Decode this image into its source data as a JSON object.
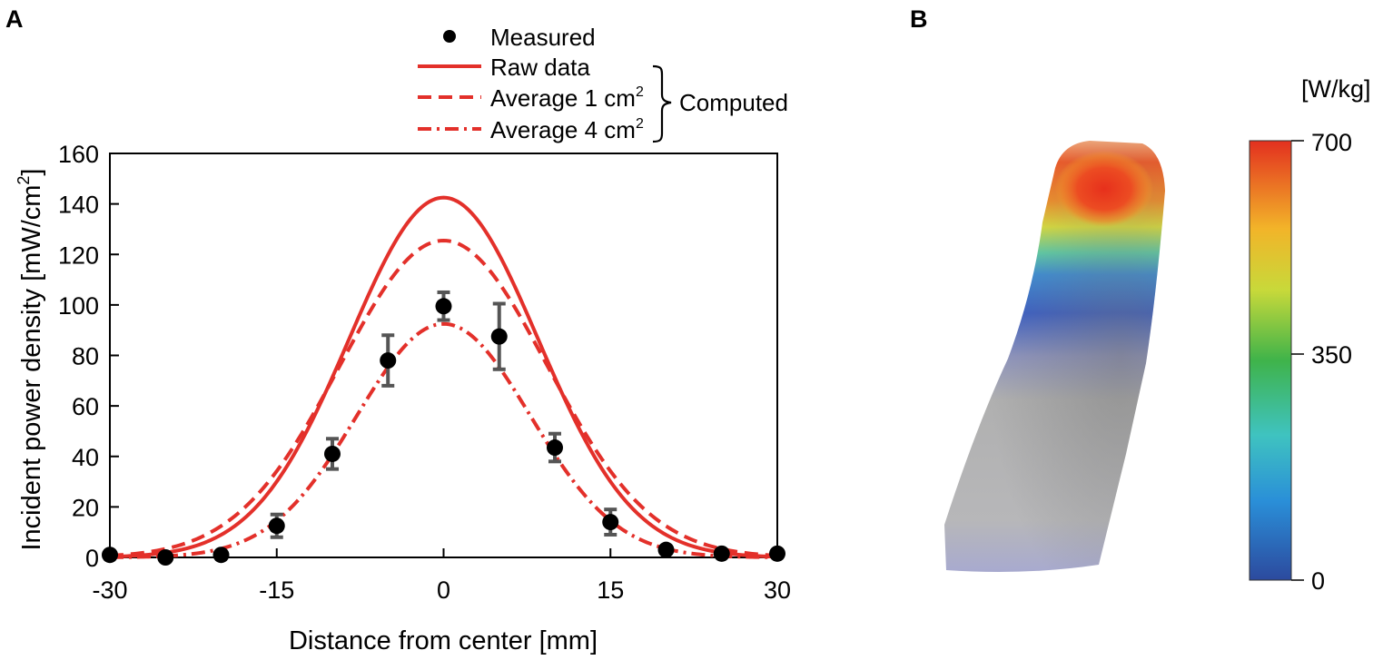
{
  "panel_a": {
    "letter": "A"
  },
  "panel_b": {
    "letter": "B"
  },
  "legend": {
    "measured": "Measured",
    "raw": "Raw data",
    "avg1_prefix": "Average 1 cm",
    "avg1_sup": "2",
    "avg4_prefix": "Average 4 cm",
    "avg4_sup": "2",
    "computed": "Computed"
  },
  "colorbar": {
    "unit": "[W/kg]",
    "max_label": "700",
    "mid_label": "350",
    "min_label": "0"
  },
  "colors": {
    "computed_line": "#e3302a",
    "measured_marker": "#000000",
    "error_bar": "#555555"
  },
  "chart_data": {
    "type": "line",
    "title": "",
    "xlabel": "Distance from center [mm]",
    "ylabel_prefix": "Incident power density [mW/cm",
    "ylabel_sup": "2",
    "ylabel_suffix": "]",
    "xlim": [
      -30,
      30
    ],
    "ylim": [
      0,
      160
    ],
    "xticks": [
      -30,
      -15,
      0,
      15,
      30
    ],
    "yticks": [
      0,
      20,
      40,
      60,
      80,
      100,
      120,
      140,
      160
    ],
    "measured": {
      "name": "Measured",
      "x": [
        -30,
        -25,
        -20,
        -15,
        -10,
        -5,
        0,
        5,
        10,
        15,
        20,
        25,
        30
      ],
      "y": [
        1,
        0,
        1,
        12.5,
        41,
        78,
        99.5,
        87.5,
        43.5,
        14,
        3,
        1.5,
        1.5
      ],
      "err": [
        0,
        0,
        0,
        4.5,
        6,
        10,
        5.5,
        13,
        5.5,
        5,
        0,
        0,
        0
      ]
    },
    "series": [
      {
        "name": "Raw data",
        "style": "solid",
        "peak": 142.5,
        "sigma": 8.5
      },
      {
        "name": "Average 1 cm2",
        "style": "dashed",
        "peak": 125.5,
        "sigma": 9.3
      },
      {
        "name": "Average 4 cm2",
        "style": "dashdot",
        "peak": 92.5,
        "sigma": 7.8
      }
    ]
  }
}
